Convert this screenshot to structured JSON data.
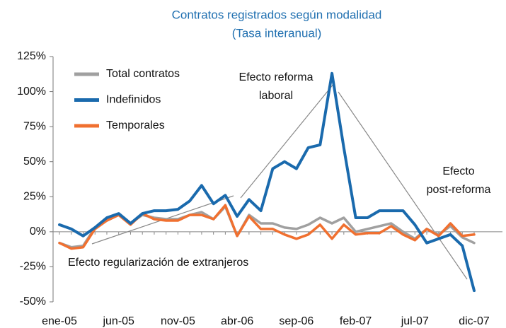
{
  "chart_data": {
    "type": "line",
    "title": "Contratos registrados según modalidad",
    "subtitle": "(Tasa interanual)",
    "categories": [
      "ene-05",
      null,
      null,
      null,
      null,
      "jun-05",
      null,
      null,
      null,
      null,
      "nov-05",
      null,
      null,
      null,
      null,
      "abr-06",
      null,
      null,
      null,
      null,
      "sep-06",
      null,
      null,
      null,
      null,
      "feb-07",
      null,
      null,
      null,
      null,
      "jul-07",
      null,
      null,
      null,
      null,
      "dic-07"
    ],
    "series": [
      {
        "name": "Total contratos",
        "color": "#a0a0a0",
        "values": [
          -8,
          -11,
          -10,
          3,
          8,
          12,
          6,
          12,
          10,
          9,
          9,
          12,
          14,
          9,
          18,
          -3,
          12,
          6,
          6,
          3,
          2,
          5,
          10,
          6,
          10,
          0,
          2,
          4,
          6,
          0,
          -5,
          2,
          -2,
          4,
          -4,
          -8
        ]
      },
      {
        "name": "Indefinidos",
        "color": "#1a6aad",
        "values": [
          5,
          2,
          -3,
          3,
          10,
          13,
          6,
          13,
          15,
          15,
          16,
          22,
          33,
          20,
          26,
          11,
          23,
          15,
          45,
          50,
          45,
          60,
          62,
          113,
          60,
          10,
          10,
          15,
          15,
          15,
          5,
          -8,
          -5,
          -2,
          -10,
          -42
        ]
      },
      {
        "name": "Temporales",
        "color": "#f07030",
        "values": [
          -8,
          -12,
          -11,
          2,
          8,
          12,
          5,
          13,
          9,
          8,
          8,
          12,
          12,
          9,
          19,
          -3,
          11,
          2,
          2,
          -2,
          -5,
          -2,
          5,
          -5,
          5,
          -2,
          -1,
          -1,
          4,
          -2,
          -6,
          2,
          -3,
          6,
          -3,
          -2
        ]
      }
    ],
    "ylim": [
      -50,
      125
    ],
    "yticks": [
      {
        "value": -50,
        "label": "-50%"
      },
      {
        "value": -25,
        "label": "-25%"
      },
      {
        "value": 0,
        "label": "0%"
      },
      {
        "value": 25,
        "label": "25%"
      },
      {
        "value": 50,
        "label": "50%"
      },
      {
        "value": 75,
        "label": "75%"
      },
      {
        "value": 100,
        "label": "100%"
      },
      {
        "value": 125,
        "label": "125%"
      }
    ],
    "legend": "upper left",
    "annotations": [
      {
        "lines": [
          "Efecto reforma",
          "laboral"
        ]
      },
      {
        "lines": [
          "Efecto",
          "post-reforma"
        ]
      },
      {
        "lines": [
          "Efecto regularización de extranjeros"
        ]
      }
    ]
  }
}
